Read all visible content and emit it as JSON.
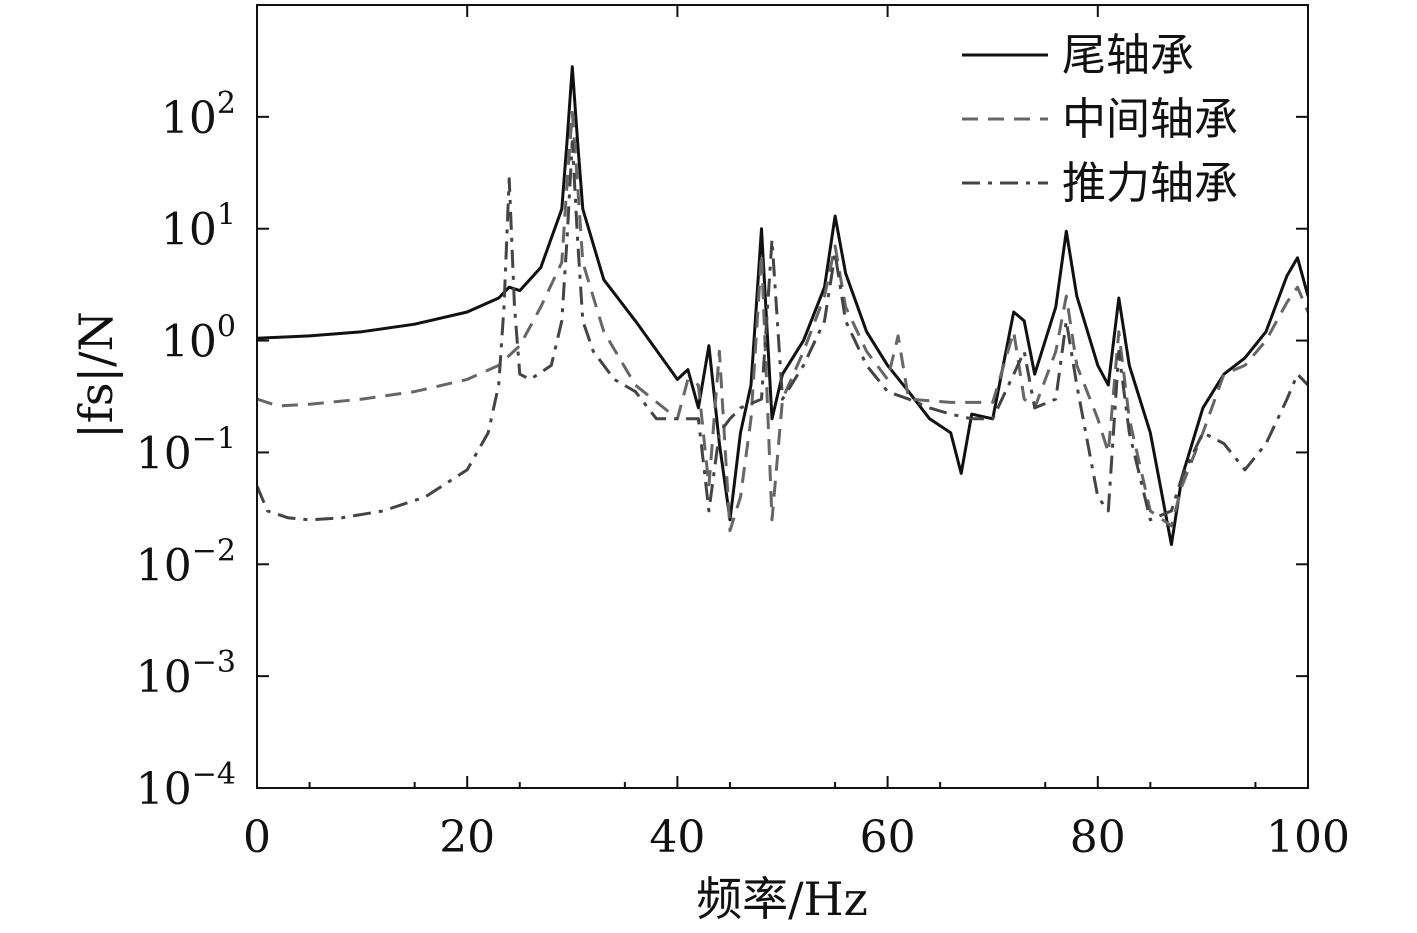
{
  "chart_data": {
    "type": "line",
    "title": "",
    "xlabel": "频率/Hz",
    "ylabel": "|fs|/N",
    "yscale": "log",
    "xlim": [
      0,
      100
    ],
    "ylim": [
      0.0001,
      1000
    ],
    "xticks": [
      0,
      20,
      40,
      60,
      80,
      100
    ],
    "xtick_labels": [
      "0",
      "20",
      "40",
      "60",
      "80",
      "100"
    ],
    "yticks": [
      0.0001,
      0.001,
      0.01,
      0.1,
      1,
      10,
      100
    ],
    "ytick_labels": [
      {
        "base": "10",
        "exp": "−4"
      },
      {
        "base": "10",
        "exp": "−3"
      },
      {
        "base": "10",
        "exp": "−2"
      },
      {
        "base": "10",
        "exp": "−1"
      },
      {
        "base": "10",
        "exp": "0"
      },
      {
        "base": "10",
        "exp": "1"
      },
      {
        "base": "10",
        "exp": "2"
      }
    ],
    "legend_position": "top-right",
    "series": [
      {
        "name": "尾轴承",
        "style": "solid",
        "color": "#111111",
        "x": [
          0,
          5,
          10,
          15,
          20,
          23,
          24,
          25,
          27,
          29,
          29.5,
          30,
          30.5,
          31,
          33,
          36,
          40,
          41,
          42,
          43,
          44,
          45,
          46,
          47,
          48,
          49,
          50,
          52,
          54,
          55,
          56,
          58,
          60,
          62,
          64,
          66,
          67,
          68,
          70,
          72,
          73,
          74,
          76,
          77,
          78,
          80,
          81,
          82,
          83,
          85,
          87,
          88,
          90,
          92,
          94,
          96,
          98,
          99,
          100
        ],
        "y": [
          1.05,
          1.1,
          1.2,
          1.4,
          1.8,
          2.4,
          3.0,
          2.8,
          4.5,
          15,
          60,
          280,
          60,
          15,
          3.5,
          1.5,
          0.45,
          0.55,
          0.25,
          0.9,
          0.12,
          0.025,
          0.15,
          0.4,
          10,
          0.2,
          0.5,
          1.0,
          3.0,
          13,
          4.0,
          1.2,
          0.6,
          0.35,
          0.2,
          0.15,
          0.065,
          0.22,
          0.2,
          1.8,
          1.5,
          0.5,
          2.0,
          9.5,
          2.5,
          0.6,
          0.4,
          2.4,
          0.6,
          0.15,
          0.015,
          0.06,
          0.25,
          0.5,
          0.7,
          1.2,
          3.8,
          5.5,
          2.5
        ]
      },
      {
        "name": "中间轴承",
        "style": "dashed",
        "color": "#666666",
        "x": [
          0,
          2,
          5,
          10,
          15,
          20,
          23,
          25,
          27,
          29,
          29.5,
          30,
          30.5,
          31,
          33,
          36,
          40,
          41,
          42,
          43,
          44,
          45,
          46,
          47,
          48,
          49,
          50,
          52,
          54,
          55,
          56,
          58,
          60,
          61,
          62,
          66,
          70,
          72,
          73,
          74,
          76,
          77,
          78,
          80,
          81,
          82,
          83,
          85,
          87,
          88,
          90,
          92,
          94,
          96,
          98,
          99,
          100
        ],
        "y": [
          0.3,
          0.26,
          0.27,
          0.3,
          0.35,
          0.45,
          0.6,
          0.9,
          2.0,
          5,
          25,
          110,
          25,
          5,
          1.2,
          0.4,
          0.2,
          0.45,
          0.4,
          0.05,
          0.8,
          0.02,
          0.04,
          0.2,
          6,
          0.025,
          0.3,
          0.8,
          2.5,
          7,
          2.0,
          0.8,
          0.45,
          1.1,
          0.3,
          0.28,
          0.28,
          1.2,
          0.3,
          0.25,
          0.8,
          2.5,
          0.6,
          0.2,
          0.1,
          1.2,
          0.2,
          0.03,
          0.022,
          0.05,
          0.15,
          0.5,
          0.6,
          1.0,
          2.2,
          3.0,
          1.8
        ]
      },
      {
        "name": "推力轴承",
        "style": "dashdot",
        "color": "#444444",
        "x": [
          0,
          1,
          3,
          5,
          8,
          12,
          16,
          20,
          22,
          23,
          23.5,
          24,
          24.5,
          25,
          26,
          28,
          29,
          29.5,
          30,
          30.5,
          31,
          32,
          34,
          36,
          38,
          40,
          42,
          43,
          44,
          45,
          46,
          48,
          49,
          50,
          52,
          54,
          55,
          56,
          58,
          60,
          62,
          64,
          66,
          68,
          70,
          72,
          73,
          74,
          76,
          77,
          78,
          80,
          81,
          82,
          83,
          85,
          87,
          88,
          90,
          92,
          94,
          96,
          98,
          99,
          100
        ],
        "y": [
          0.05,
          0.03,
          0.026,
          0.025,
          0.026,
          0.03,
          0.04,
          0.07,
          0.15,
          0.4,
          2,
          28,
          2,
          0.5,
          0.45,
          0.6,
          1.5,
          8,
          60,
          8,
          1.5,
          0.8,
          0.45,
          0.35,
          0.2,
          0.2,
          0.2,
          0.03,
          0.15,
          0.2,
          0.25,
          0.3,
          8,
          0.3,
          0.6,
          1.5,
          6,
          1.5,
          0.6,
          0.35,
          0.3,
          0.25,
          0.22,
          0.2,
          0.2,
          0.5,
          0.8,
          0.25,
          0.3,
          1.5,
          0.4,
          0.04,
          0.03,
          0.8,
          0.15,
          0.025,
          0.03,
          0.06,
          0.15,
          0.12,
          0.07,
          0.12,
          0.3,
          0.5,
          0.4
        ]
      }
    ]
  }
}
